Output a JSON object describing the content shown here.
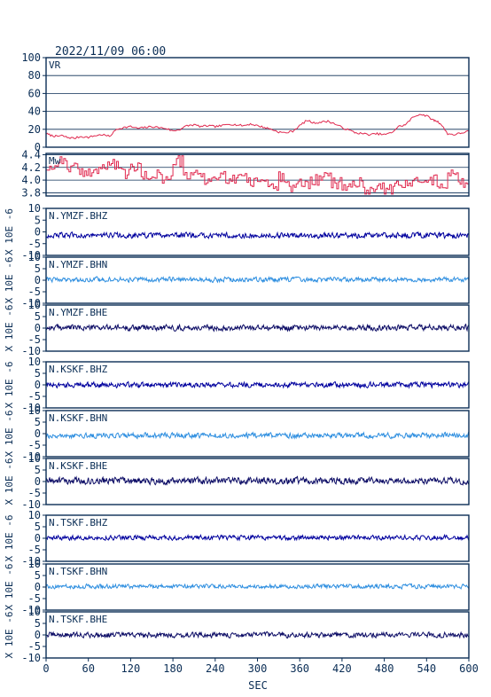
{
  "header": {
    "timestamp": "2022/11/09 06:00"
  },
  "x_axis": {
    "label": "SEC",
    "ticks": [
      "0",
      "60",
      "120",
      "180",
      "240",
      "300",
      "360",
      "420",
      "480",
      "540",
      "600"
    ]
  },
  "colors": {
    "axis": "#0a2d55",
    "vr": "#e0294f",
    "mw": "#e0294f",
    "bhz": "#00009e",
    "bhn": "#2f8fe0",
    "bhe": "#0d0d66"
  },
  "chart_data": [
    {
      "type": "line",
      "label": "VR",
      "ylim": [
        0,
        100
      ],
      "yticks": [
        "0",
        "20",
        "40",
        "60",
        "80",
        "100"
      ],
      "grid": true,
      "color_key": "vr",
      "series": [
        {
          "x": [
            0,
            8,
            15,
            22,
            30,
            40,
            50,
            60,
            70,
            80,
            90,
            100,
            110,
            120,
            130,
            140,
            150,
            160,
            170,
            180,
            190,
            200,
            210,
            220,
            230,
            240,
            250,
            260,
            270,
            280,
            290,
            300,
            310,
            320,
            330,
            340,
            350,
            360,
            370,
            380,
            390,
            400,
            410,
            420,
            430,
            440,
            450,
            460,
            470,
            480,
            490,
            500,
            510,
            520,
            530,
            540,
            550,
            555,
            560,
            570,
            580,
            590,
            600
          ],
          "y": [
            15,
            13,
            12,
            13,
            11,
            10,
            12,
            11,
            13,
            14,
            12,
            20,
            22,
            23,
            21,
            22,
            23,
            22,
            21,
            18,
            20,
            24,
            25,
            23,
            24,
            23,
            24,
            26,
            25,
            24,
            26,
            24,
            22,
            20,
            17,
            16,
            18,
            24,
            30,
            27,
            28,
            29,
            26,
            22,
            19,
            16,
            15,
            14,
            15,
            14,
            16,
            23,
            25,
            33,
            37,
            35,
            30,
            29,
            26,
            15,
            14,
            16,
            18
          ]
        }
      ]
    },
    {
      "type": "line",
      "label": "Mw",
      "ylim": [
        3.75,
        4.42
      ],
      "yticks": [
        "3.8",
        "4.0",
        "4.2",
        "4.4"
      ],
      "grid": true,
      "color_key": "mw",
      "series": [
        {
          "x": [
            0,
            15,
            30,
            45,
            60,
            75,
            90,
            105,
            120,
            135,
            150,
            165,
            180,
            195,
            210,
            225,
            240,
            255,
            270,
            285,
            300,
            315,
            330,
            345,
            360,
            375,
            390,
            405,
            420,
            435,
            450,
            465,
            480,
            495,
            510,
            525,
            540,
            555,
            570,
            585,
            600
          ],
          "y": [
            4.2,
            4.3,
            4.2,
            4.1,
            4.15,
            4.2,
            4.25,
            4.1,
            4.2,
            4.05,
            4.1,
            4.0,
            4.3,
            4.05,
            4.1,
            4.0,
            4.05,
            4.0,
            4.1,
            3.95,
            4.0,
            3.9,
            4.05,
            3.9,
            3.95,
            4.0,
            4.05,
            3.95,
            3.9,
            3.95,
            3.85,
            3.9,
            3.85,
            3.9,
            3.95,
            4.05,
            4.0,
            3.95,
            4.1,
            3.95,
            4.0
          ]
        }
      ]
    },
    {
      "type": "line",
      "label": "N.YMZF.BHZ",
      "ylim": [
        -10,
        10
      ],
      "yticks": [
        "-10",
        "-5",
        "0",
        "5",
        "10"
      ],
      "ylabel": "X 10E -6",
      "color_key": "bhz",
      "baseline": -1.5,
      "noise": 1.0
    },
    {
      "type": "line",
      "label": "N.YMZF.BHN",
      "ylim": [
        -10,
        10
      ],
      "yticks": [
        "-10",
        "-5",
        "0",
        "5",
        "10"
      ],
      "ylabel": "X 10E -6",
      "color_key": "bhn",
      "baseline": 0.3,
      "noise": 0.9
    },
    {
      "type": "line",
      "label": "N.YMZF.BHE",
      "ylim": [
        -10,
        10
      ],
      "yticks": [
        "-10",
        "-5",
        "0",
        "5",
        "10"
      ],
      "ylabel": "X 10E -6",
      "color_key": "bhe",
      "baseline": 0.2,
      "noise": 1.1
    },
    {
      "type": "line",
      "label": "N.KSKF.BHZ",
      "ylim": [
        -10,
        10
      ],
      "yticks": [
        "-10",
        "-5",
        "0",
        "5",
        "10"
      ],
      "ylabel": "X 10E -6",
      "color_key": "bhz",
      "baseline": 0.0,
      "noise": 1.0
    },
    {
      "type": "line",
      "label": "N.KSKF.BHN",
      "ylim": [
        -10,
        10
      ],
      "yticks": [
        "-10",
        "-5",
        "0",
        "5",
        "10"
      ],
      "ylabel": "X 10E -6",
      "color_key": "bhn",
      "baseline": -0.8,
      "noise": 1.0
    },
    {
      "type": "line",
      "label": "N.KSKF.BHE",
      "ylim": [
        -10,
        10
      ],
      "yticks": [
        "-10",
        "-5",
        "0",
        "5",
        "10"
      ],
      "ylabel": "X 10E -6",
      "color_key": "bhe",
      "baseline": 0.3,
      "noise": 1.3
    },
    {
      "type": "line",
      "label": "N.TSKF.BHZ",
      "ylim": [
        -10,
        10
      ],
      "yticks": [
        "-10",
        "-5",
        "0",
        "5",
        "10"
      ],
      "ylabel": "X 10E -6",
      "color_key": "bhz",
      "baseline": 0.3,
      "noise": 0.9
    },
    {
      "type": "line",
      "label": "N.TSKF.BHN",
      "ylim": [
        -10,
        10
      ],
      "yticks": [
        "-10",
        "-5",
        "0",
        "5",
        "10"
      ],
      "ylabel": "X 10E -6",
      "color_key": "bhn",
      "baseline": 0.3,
      "noise": 0.8
    },
    {
      "type": "line",
      "label": "N.TSKF.BHE",
      "ylim": [
        -10,
        10
      ],
      "yticks": [
        "-10",
        "-5",
        "0",
        "5",
        "10"
      ],
      "ylabel": "X 10E -6",
      "color_key": "bhe",
      "baseline": 0.0,
      "noise": 1.0
    }
  ]
}
